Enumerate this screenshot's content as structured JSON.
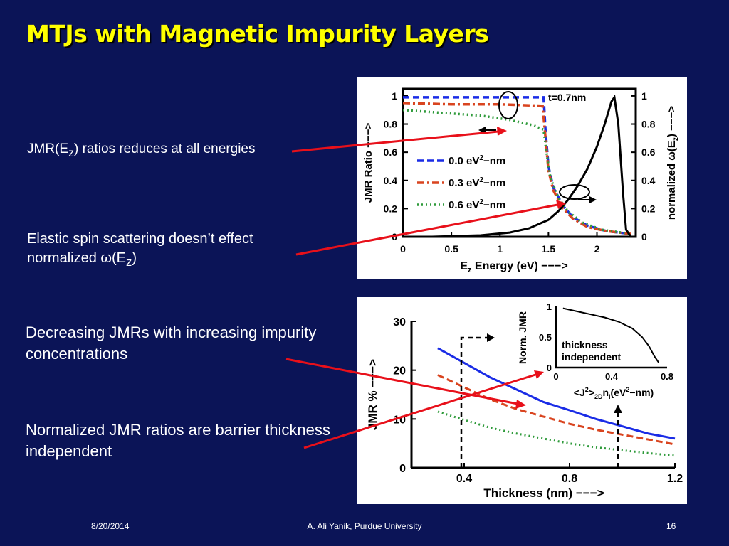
{
  "slide": {
    "title": "MTJs with Magnetic Impurity Layers",
    "footer": {
      "date": "8/20/2014",
      "author": "A. Ali Yanik, Purdue University",
      "page": "16"
    }
  },
  "bullets": {
    "b1": {
      "pre": "JMR(E",
      "sub": "z",
      "post": ") ratios reduces at all energies"
    },
    "b2": {
      "pre": "Elastic spin scattering doesn’t effect normalized ω(E",
      "sub": "z",
      "post": ")"
    },
    "b3": "Decreasing JMRs with increasing impurity concentrations",
    "b4": "Normalized JMR ratios are barrier thickness independent"
  },
  "colors": {
    "background": "#0b1457",
    "title": "#ffff00",
    "arrow": "#e8101a",
    "blue": "#1a2ce6",
    "red": "#d9441f",
    "green": "#2e9a3a"
  },
  "chart_data": [
    {
      "type": "line",
      "annotation": "t=0.7nm",
      "xlabel": {
        "pre": "E",
        "sub": "z",
        "post": " Energy (eV) −−−>"
      },
      "ylabel_left": "JMR Ratio −−−>",
      "ylabel_right": {
        "pre": "normalized ω(E",
        "sub": "z",
        "post": ") −−−>"
      },
      "xlim": [
        0,
        2.4
      ],
      "ylim": [
        0,
        1.05
      ],
      "xticks": [
        "0",
        "0.5",
        "1",
        "1.5",
        "2"
      ],
      "yticks": [
        "0",
        "0.2",
        "0.4",
        "0.6",
        "0.8",
        "1"
      ],
      "series": [
        {
          "name": "0.0 eV²−nm",
          "legend": {
            "pre": "0.0 eV",
            "sup": "2",
            "post": "−nm"
          },
          "color": "blue",
          "dash": "dash",
          "points": [
            [
              0,
              0.99
            ],
            [
              0.5,
              0.99
            ],
            [
              1.0,
              0.99
            ],
            [
              1.45,
              0.99
            ],
            [
              1.47,
              0.75
            ],
            [
              1.5,
              0.5
            ],
            [
              1.55,
              0.35
            ],
            [
              1.65,
              0.22
            ],
            [
              1.75,
              0.14
            ],
            [
              1.9,
              0.08
            ],
            [
              2.1,
              0.04
            ],
            [
              2.35,
              0.02
            ]
          ]
        },
        {
          "name": "0.3 eV²−nm",
          "legend": {
            "pre": "0.3 eV",
            "sup": "2",
            "post": "−nm"
          },
          "color": "red",
          "dash": "dashdot",
          "points": [
            [
              0,
              0.95
            ],
            [
              0.5,
              0.94
            ],
            [
              1.0,
              0.94
            ],
            [
              1.44,
              0.93
            ],
            [
              1.47,
              0.7
            ],
            [
              1.5,
              0.47
            ],
            [
              1.55,
              0.33
            ],
            [
              1.65,
              0.2
            ],
            [
              1.75,
              0.13
            ],
            [
              1.9,
              0.07
            ],
            [
              2.1,
              0.04
            ],
            [
              2.35,
              0.02
            ]
          ]
        },
        {
          "name": "0.6 eV²−nm",
          "legend": {
            "pre": "0.6 eV",
            "sup": "2",
            "post": "−nm"
          },
          "color": "green",
          "dash": "dot",
          "points": [
            [
              0,
              0.9
            ],
            [
              0.4,
              0.88
            ],
            [
              0.8,
              0.86
            ],
            [
              1.1,
              0.83
            ],
            [
              1.35,
              0.79
            ],
            [
              1.45,
              0.76
            ],
            [
              1.48,
              0.6
            ],
            [
              1.52,
              0.42
            ],
            [
              1.6,
              0.28
            ],
            [
              1.7,
              0.18
            ],
            [
              1.85,
              0.1
            ],
            [
              2.05,
              0.05
            ],
            [
              2.35,
              0.02
            ]
          ]
        },
        {
          "name": "normalized ω(Ez)",
          "color": "black",
          "dash": "solid",
          "axis": "right",
          "points": [
            [
              0.3,
              0
            ],
            [
              0.8,
              0.01
            ],
            [
              1.1,
              0.03
            ],
            [
              1.3,
              0.06
            ],
            [
              1.5,
              0.12
            ],
            [
              1.6,
              0.18
            ],
            [
              1.7,
              0.26
            ],
            [
              1.8,
              0.36
            ],
            [
              1.9,
              0.48
            ],
            [
              2.0,
              0.64
            ],
            [
              2.08,
              0.8
            ],
            [
              2.15,
              0.96
            ],
            [
              2.18,
              0.99
            ],
            [
              2.22,
              0.8
            ],
            [
              2.27,
              0.3
            ],
            [
              2.3,
              0.05
            ],
            [
              2.35,
              0
            ]
          ]
        }
      ]
    },
    {
      "type": "line",
      "xlabel": "Thickness (nm) −−−>",
      "ylabel": "JMR % −−−>",
      "xlim": [
        0.2,
        1.2
      ],
      "ylim": [
        0,
        30
      ],
      "xticks": [
        "0.4",
        "0.8",
        "1.2"
      ],
      "yticks": [
        "0",
        "10",
        "20",
        "30"
      ],
      "series": [
        {
          "color": "blue",
          "dash": "solid",
          "points": [
            [
              0.3,
              24.5
            ],
            [
              0.4,
              21.5
            ],
            [
              0.5,
              18.5
            ],
            [
              0.6,
              16
            ],
            [
              0.7,
              13.5
            ],
            [
              0.8,
              11.8
            ],
            [
              0.9,
              10
            ],
            [
              1.0,
              8.5
            ],
            [
              1.1,
              7
            ],
            [
              1.2,
              6
            ]
          ]
        },
        {
          "color": "red",
          "dash": "dash",
          "points": [
            [
              0.3,
              19
            ],
            [
              0.4,
              16.5
            ],
            [
              0.5,
              14
            ],
            [
              0.6,
              12
            ],
            [
              0.7,
              10.5
            ],
            [
              0.8,
              9
            ],
            [
              0.9,
              7.8
            ],
            [
              1.0,
              6.8
            ],
            [
              1.1,
              5.8
            ],
            [
              1.2,
              4.8
            ]
          ]
        },
        {
          "color": "green",
          "dash": "dot",
          "points": [
            [
              0.3,
              11.5
            ],
            [
              0.4,
              9.8
            ],
            [
              0.5,
              8.2
            ],
            [
              0.6,
              7
            ],
            [
              0.7,
              6
            ],
            [
              0.8,
              5
            ],
            [
              0.9,
              4.2
            ],
            [
              1.0,
              3.6
            ],
            [
              1.1,
              3
            ],
            [
              1.2,
              2.5
            ]
          ]
        }
      ],
      "inset": {
        "ylabel": "Norm. JMR",
        "xlabel": {
          "t1": "<J",
          "s1": "2",
          "t2": ">",
          "s2": "2D",
          "t3": "n",
          "s3": "I",
          "t4": "(eV",
          "s4": "2",
          "t5": "−nm)"
        },
        "annotation": [
          "thickness",
          "independent"
        ],
        "xlim": [
          0,
          0.8
        ],
        "ylim": [
          0,
          1
        ],
        "xticks": [
          "0",
          "0.4",
          "0.8"
        ],
        "yticks": [
          "0",
          "0.5",
          "1"
        ],
        "points": [
          [
            0.05,
            0.97
          ],
          [
            0.15,
            0.92
          ],
          [
            0.25,
            0.87
          ],
          [
            0.35,
            0.82
          ],
          [
            0.45,
            0.75
          ],
          [
            0.55,
            0.64
          ],
          [
            0.62,
            0.5
          ],
          [
            0.67,
            0.35
          ],
          [
            0.71,
            0.18
          ],
          [
            0.74,
            0.08
          ]
        ]
      }
    }
  ]
}
